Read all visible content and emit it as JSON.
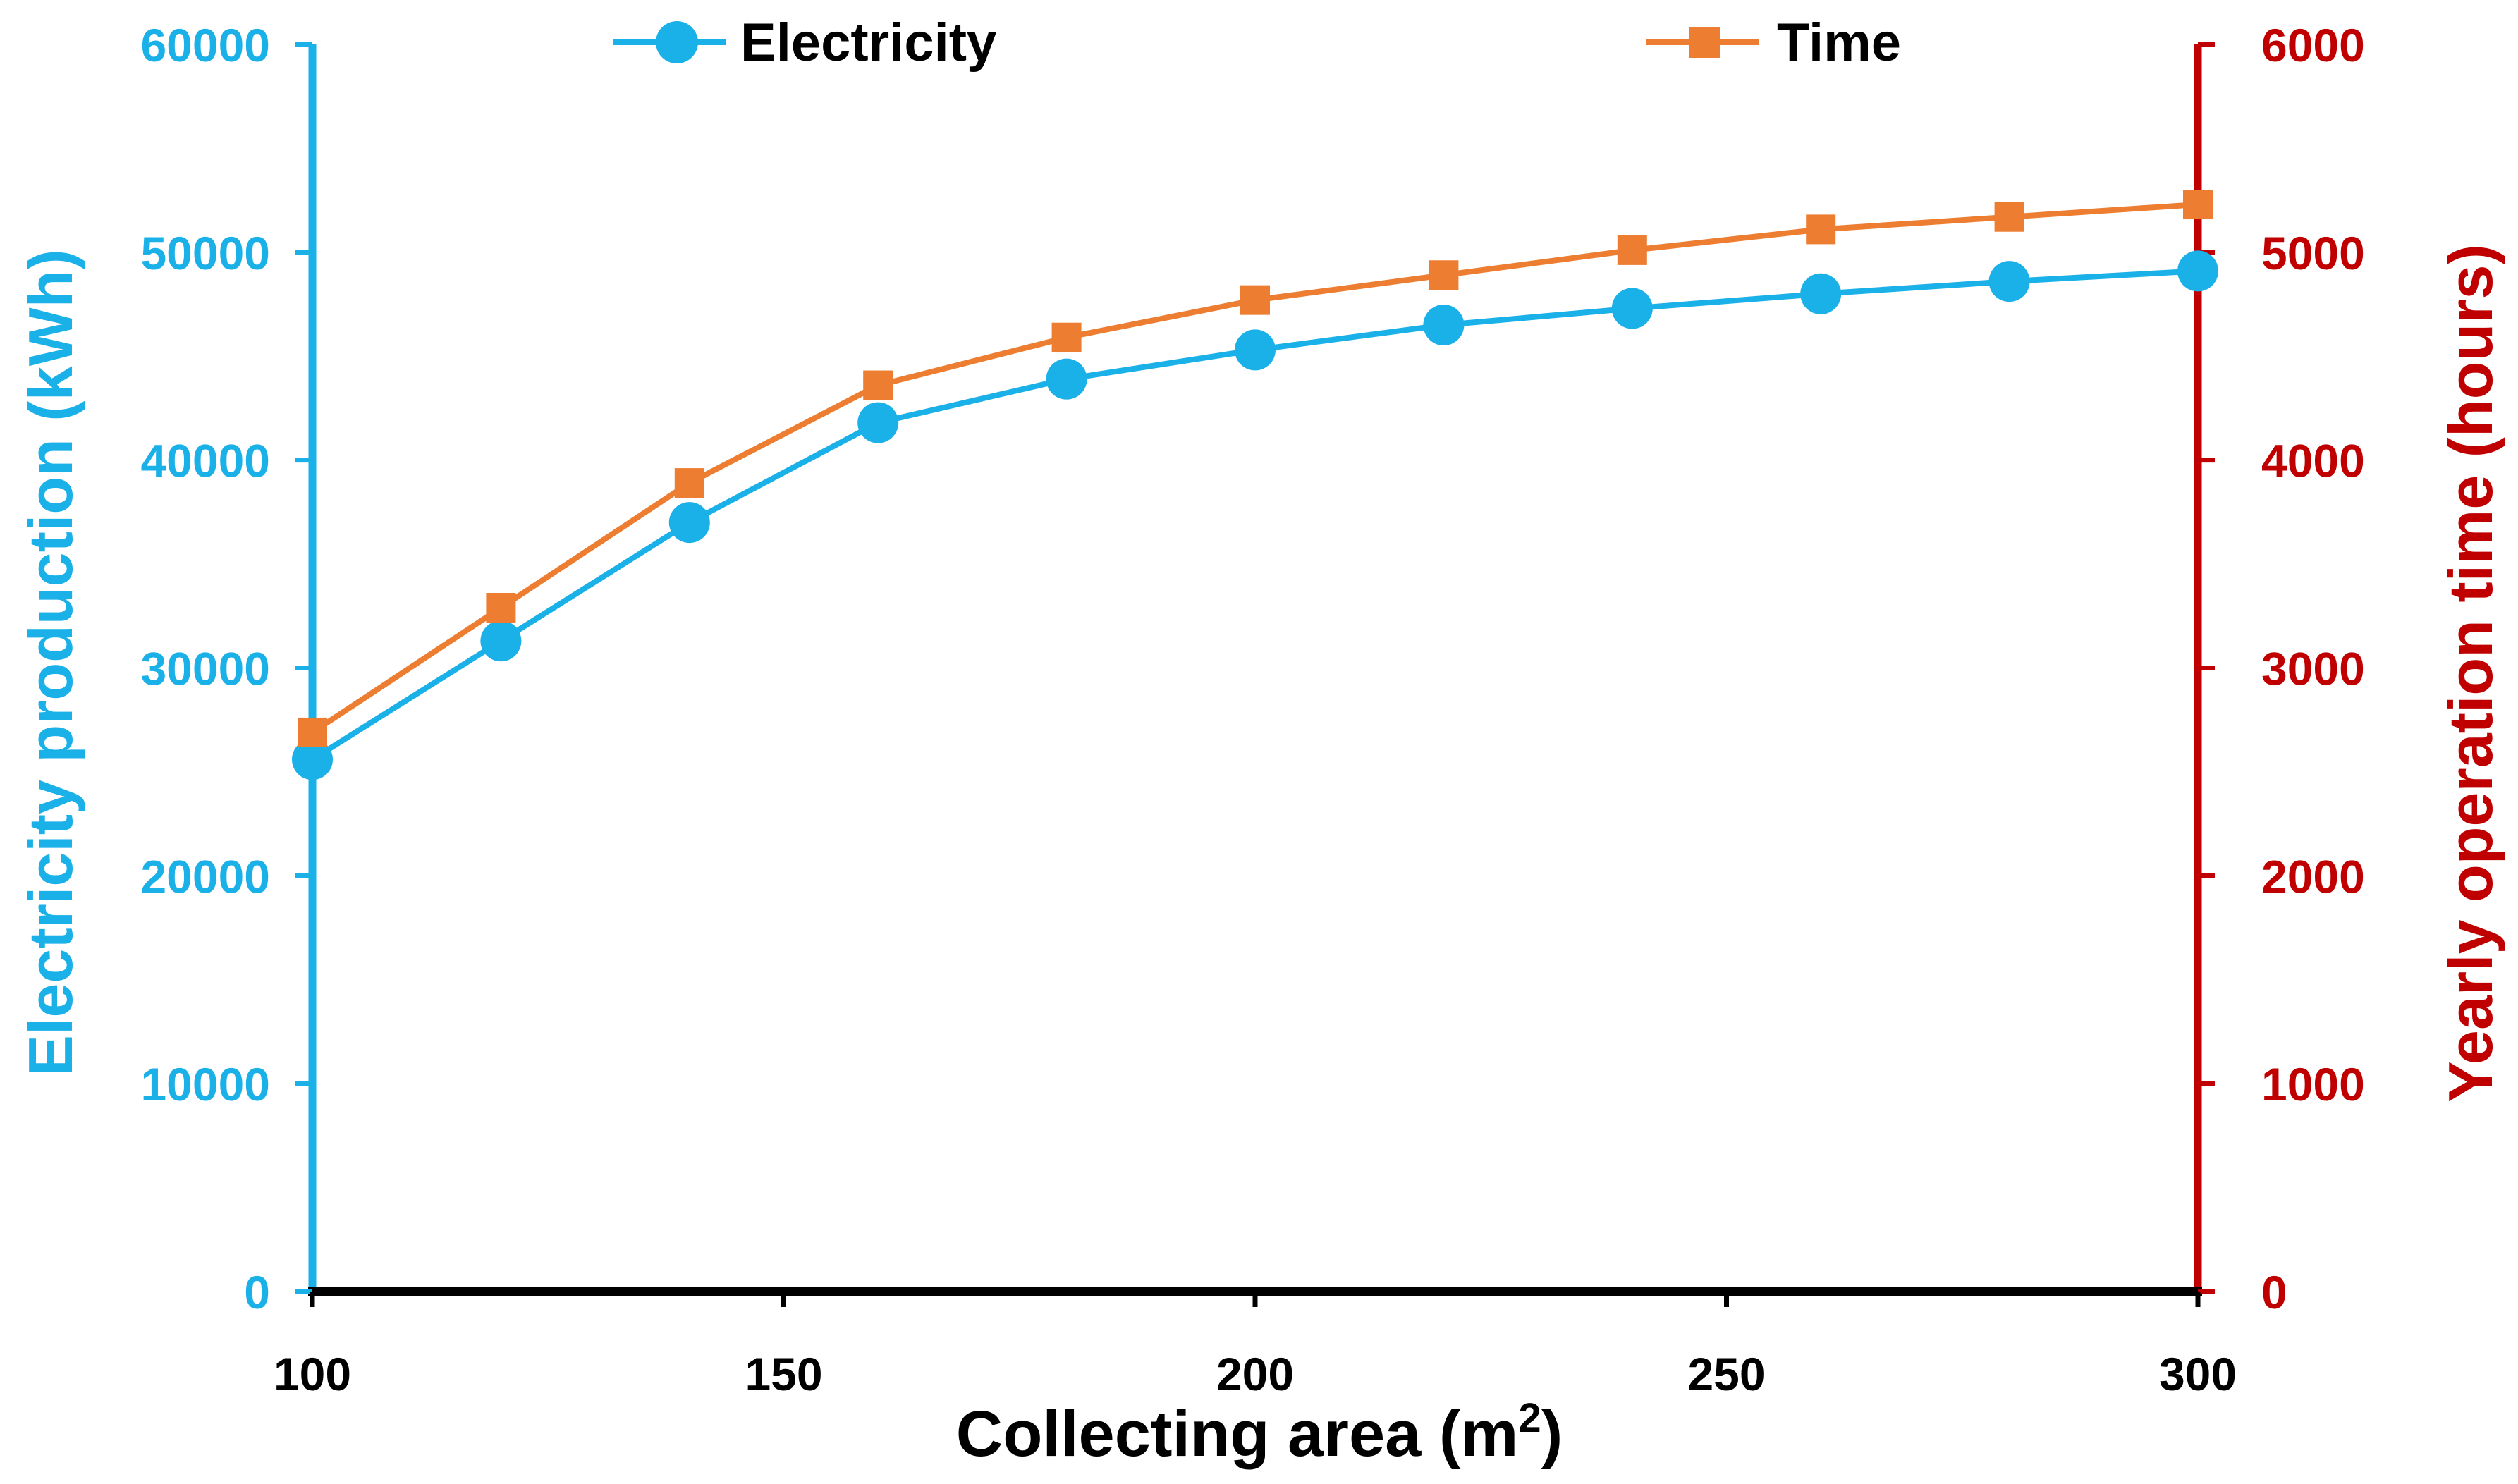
{
  "chart_data": {
    "type": "line",
    "title": "",
    "xlabel": "Collecting area (m",
    "xlabel_superscript": "2",
    "xlabel_suffix": ")",
    "ylabel_left": "Electricity production (kWh)",
    "ylabel_right": "Yearly operation time (hours)",
    "xlim": [
      100,
      300
    ],
    "ylim_left": [
      0,
      60000
    ],
    "ylim_right": [
      0,
      6000
    ],
    "x_ticks": [
      "100",
      "150",
      "200",
      "250",
      "300"
    ],
    "y_left_ticks": [
      "0",
      "10000",
      "20000",
      "30000",
      "40000",
      "50000",
      "60000"
    ],
    "y_right_ticks": [
      "0",
      "1000",
      "2000",
      "3000",
      "4000",
      "5000",
      "6000"
    ],
    "x": [
      100,
      120,
      140,
      160,
      180,
      200,
      220,
      240,
      260,
      280,
      300
    ],
    "series": [
      {
        "name": "Electricity",
        "axis": "left",
        "marker": "circle",
        "color": "#1ab0e8",
        "values": [
          25600,
          31300,
          37000,
          41800,
          43900,
          45300,
          46500,
          47300,
          48000,
          48600,
          49100
        ]
      },
      {
        "name": "Time",
        "axis": "right",
        "marker": "square",
        "color": "#ed7d31",
        "values": [
          2690,
          3290,
          3890,
          4360,
          4590,
          4770,
          4890,
          5010,
          5110,
          5170,
          5230
        ]
      }
    ],
    "legend_position": "top",
    "grid": false
  },
  "colors": {
    "left_axis": "#1ab0e8",
    "right_axis": "#c00000",
    "x_axis": "#000000"
  }
}
